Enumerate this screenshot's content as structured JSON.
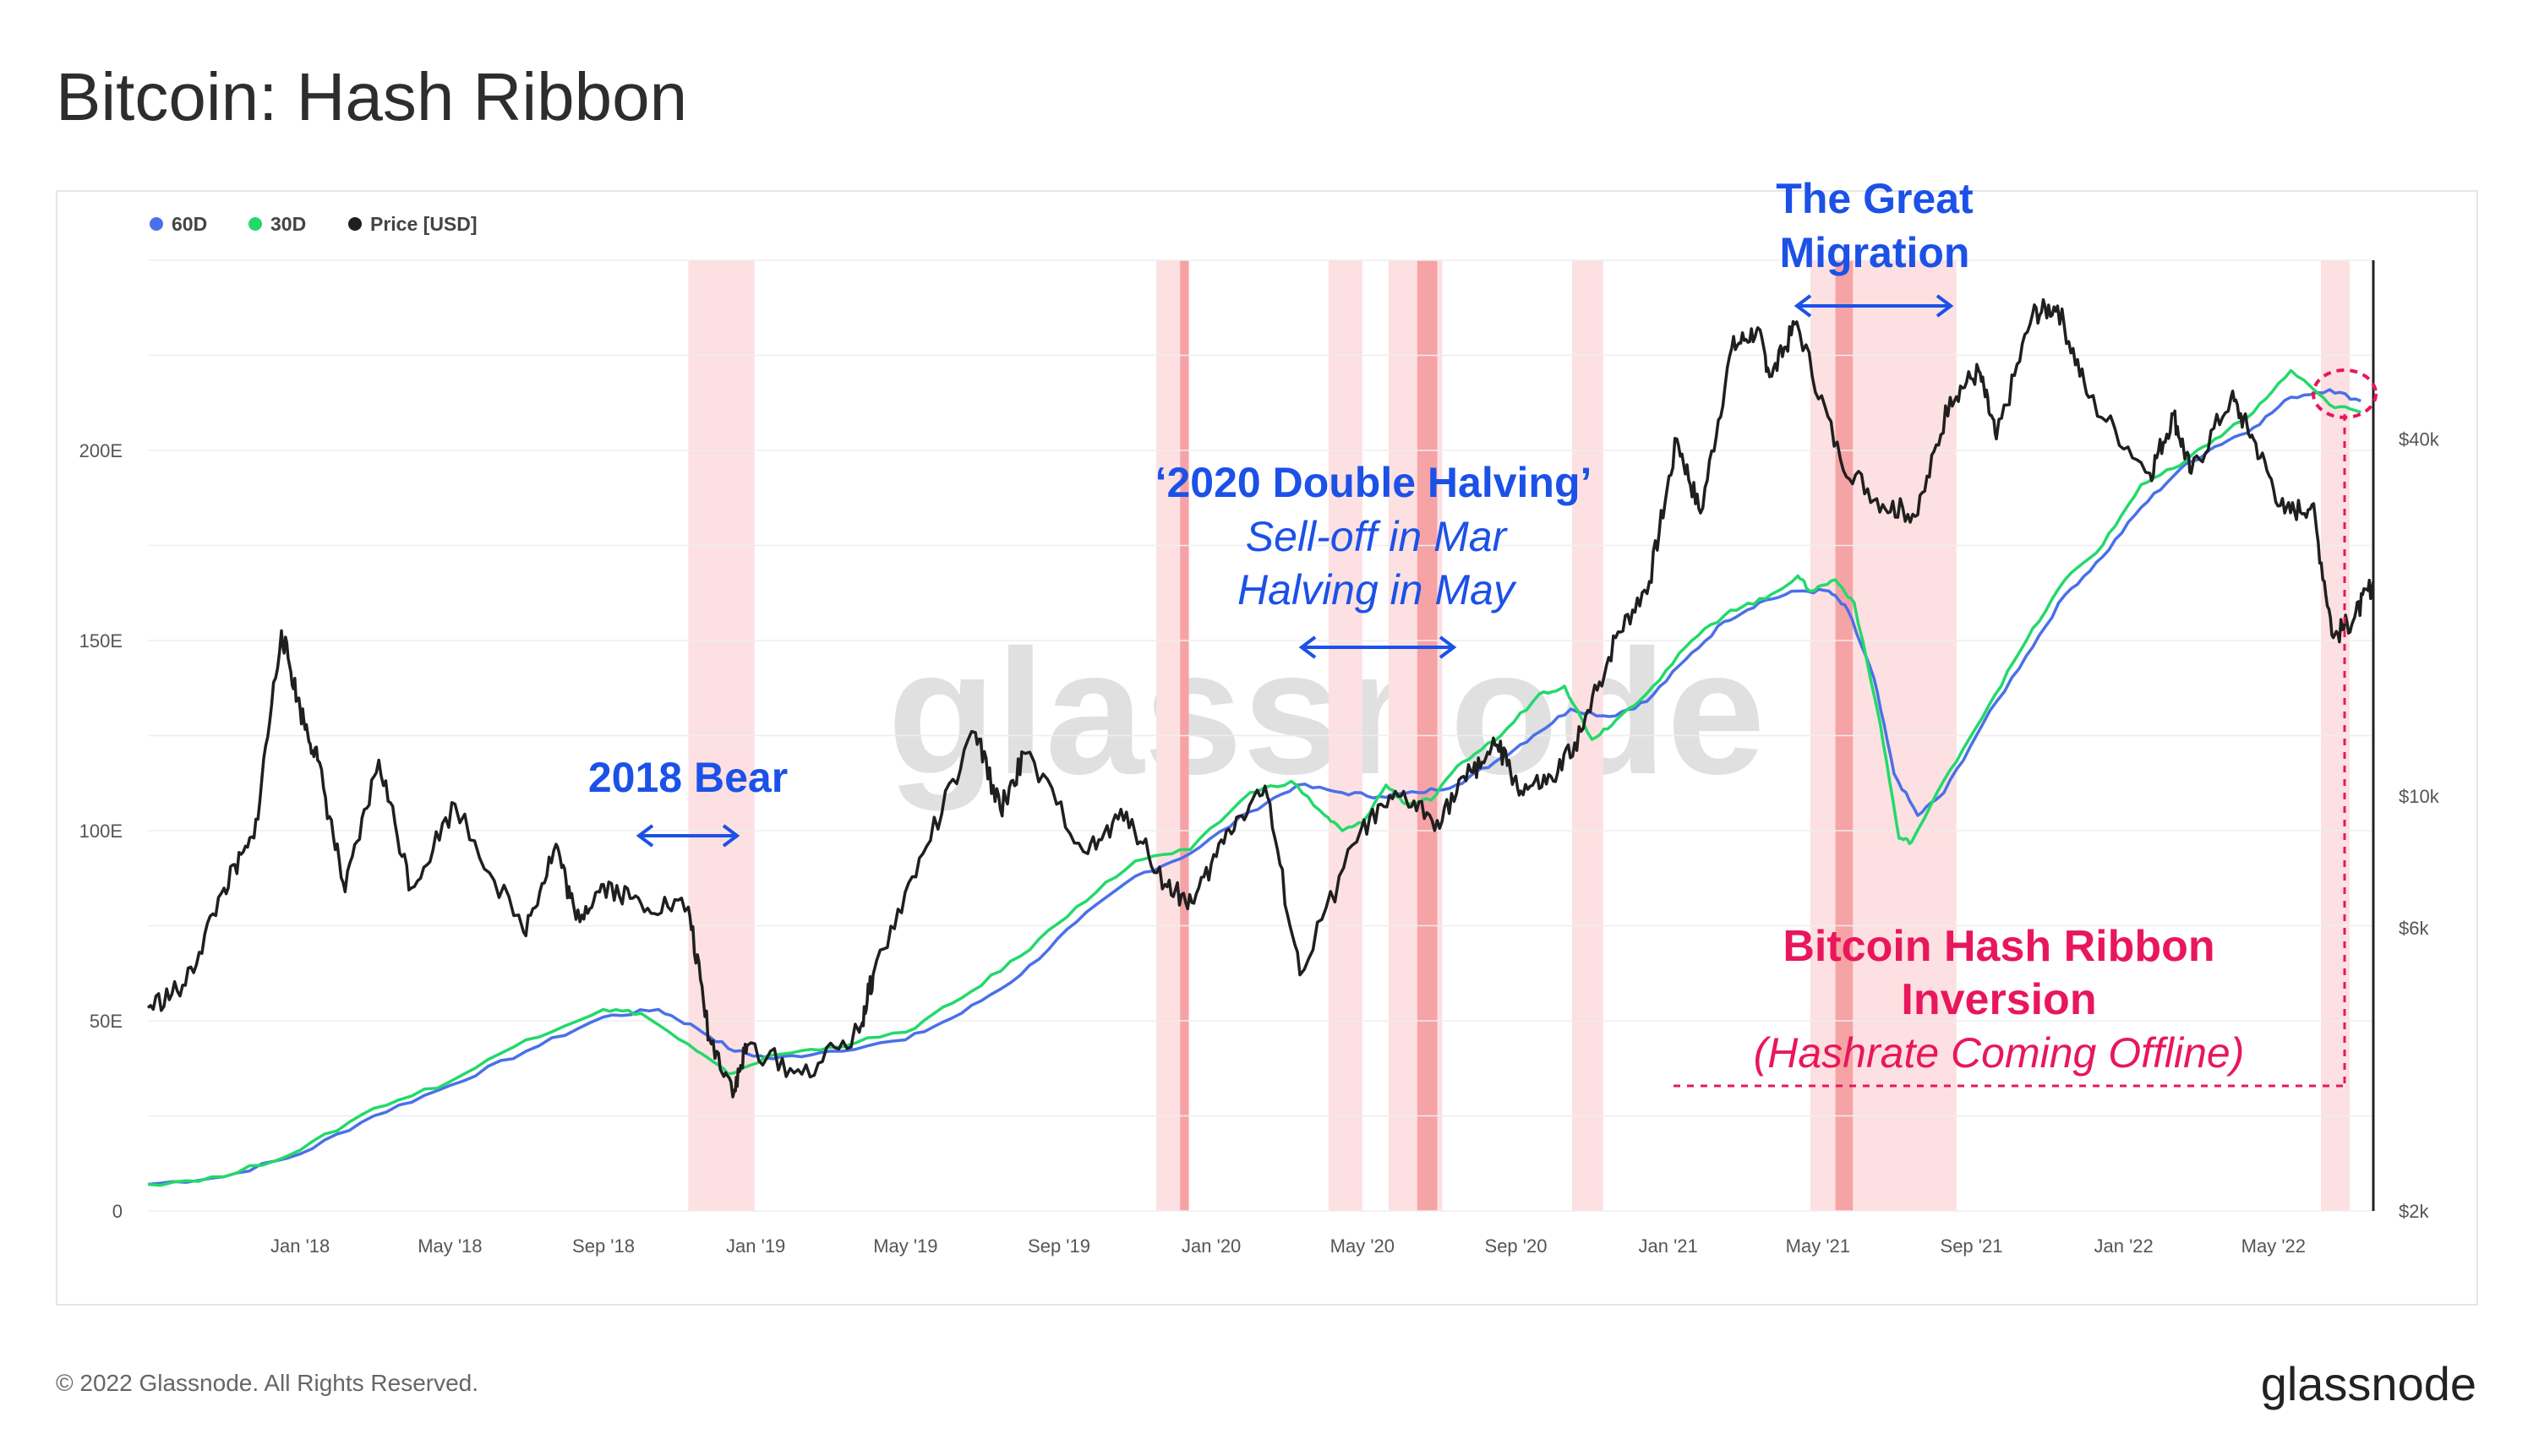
{
  "chart_data": {
    "type": "line",
    "title": "Bitcoin: Hash Ribbon",
    "x_axis": {
      "start": "2017-09-01",
      "end": "2022-07-20",
      "tick_labels": [
        "Jan '18",
        "May '18",
        "Sep '18",
        "Jan '19",
        "May '19",
        "Sep '19",
        "Jan '20",
        "May '20",
        "Sep '20",
        "Jan '21",
        "May '21",
        "Sep '21",
        "Jan '22",
        "May '22"
      ],
      "tick_dates": [
        "2018-01-01",
        "2018-05-01",
        "2018-09-01",
        "2019-01-01",
        "2019-05-01",
        "2019-09-01",
        "2020-01-01",
        "2020-05-01",
        "2020-09-01",
        "2021-01-01",
        "2021-05-01",
        "2021-09-01",
        "2022-01-01",
        "2022-05-01"
      ]
    },
    "y_axis_left": {
      "unit": "hashrate",
      "ylim": [
        0,
        250
      ],
      "ticks": [
        0,
        50,
        100,
        150,
        200
      ],
      "tick_labels": [
        "0",
        "50E",
        "100E",
        "150E",
        "200E"
      ]
    },
    "y_axis_right": {
      "unit": "Price [USD]",
      "scale": "log",
      "ylim": [
        2000,
        80000
      ],
      "ticks": [
        2000,
        6000,
        10000,
        40000
      ],
      "tick_labels": [
        "$2k",
        "$6k",
        "$10k",
        "$40k"
      ]
    },
    "legend": [
      {
        "name": "60D",
        "color": "#4a70e8"
      },
      {
        "name": "30D",
        "color": "#23d96a"
      },
      {
        "name": "Price [USD]",
        "color": "#1f1f1f"
      }
    ],
    "capitulation_bands": [
      {
        "start": "2018-11-08",
        "end": "2018-12-31",
        "shade": "light"
      },
      {
        "start": "2019-11-18",
        "end": "2019-12-14",
        "shade": "light"
      },
      {
        "start": "2019-12-07",
        "end": "2019-12-14",
        "shade": "dark"
      },
      {
        "start": "2020-04-04",
        "end": "2020-05-01",
        "shade": "light"
      },
      {
        "start": "2020-05-22",
        "end": "2020-07-04",
        "shade": "light"
      },
      {
        "start": "2020-06-14",
        "end": "2020-06-30",
        "shade": "dark"
      },
      {
        "start": "2020-10-16",
        "end": "2020-11-10",
        "shade": "light"
      },
      {
        "start": "2021-04-25",
        "end": "2021-08-20",
        "shade": "light"
      },
      {
        "start": "2021-05-15",
        "end": "2021-05-29",
        "shade": "dark"
      },
      {
        "start": "2022-06-08",
        "end": "2022-07-01",
        "shade": "light"
      }
    ],
    "series": [
      {
        "name": "60D",
        "axis": "left",
        "points": [
          [
            "2017-09-01",
            7
          ],
          [
            "2017-11-01",
            9
          ],
          [
            "2018-01-01",
            15
          ],
          [
            "2018-03-01",
            25
          ],
          [
            "2018-05-01",
            33
          ],
          [
            "2018-07-01",
            42
          ],
          [
            "2018-09-01",
            51
          ],
          [
            "2018-10-15",
            53
          ],
          [
            "2018-11-15",
            48
          ],
          [
            "2018-12-15",
            42
          ],
          [
            "2019-01-15",
            40
          ],
          [
            "2019-03-01",
            42
          ],
          [
            "2019-05-01",
            45
          ],
          [
            "2019-06-15",
            52
          ],
          [
            "2019-08-01",
            62
          ],
          [
            "2019-09-15",
            76
          ],
          [
            "2019-11-01",
            88
          ],
          [
            "2019-12-15",
            94
          ],
          [
            "2020-02-01",
            105
          ],
          [
            "2020-03-10",
            112
          ],
          [
            "2020-04-15",
            110
          ],
          [
            "2020-05-15",
            109
          ],
          [
            "2020-06-15",
            110
          ],
          [
            "2020-07-15",
            112
          ],
          [
            "2020-08-15",
            118
          ],
          [
            "2020-09-15",
            125
          ],
          [
            "2020-10-15",
            132
          ],
          [
            "2020-11-15",
            130
          ],
          [
            "2020-12-15",
            134
          ],
          [
            "2021-01-15",
            145
          ],
          [
            "2021-02-15",
            155
          ],
          [
            "2021-03-15",
            160
          ],
          [
            "2021-04-15",
            163
          ],
          [
            "2021-05-10",
            163
          ],
          [
            "2021-05-25",
            158
          ],
          [
            "2021-06-15",
            140
          ],
          [
            "2021-07-01",
            115
          ],
          [
            "2021-07-20",
            104
          ],
          [
            "2021-08-10",
            110
          ],
          [
            "2021-09-10",
            128
          ],
          [
            "2021-10-15",
            146
          ],
          [
            "2021-11-15",
            162
          ],
          [
            "2021-12-15",
            172
          ],
          [
            "2022-01-15",
            185
          ],
          [
            "2022-02-15",
            195
          ],
          [
            "2022-03-15",
            201
          ],
          [
            "2022-04-15",
            206
          ],
          [
            "2022-05-15",
            214
          ],
          [
            "2022-06-15",
            216
          ],
          [
            "2022-07-10",
            213
          ]
        ]
      },
      {
        "name": "30D",
        "axis": "left",
        "points": [
          [
            "2017-09-01",
            7
          ],
          [
            "2017-11-01",
            9
          ],
          [
            "2018-01-01",
            16
          ],
          [
            "2018-03-01",
            27
          ],
          [
            "2018-05-01",
            34
          ],
          [
            "2018-07-01",
            45
          ],
          [
            "2018-09-01",
            53
          ],
          [
            "2018-10-01",
            52
          ],
          [
            "2018-11-15",
            42
          ],
          [
            "2018-12-10",
            36
          ],
          [
            "2019-01-15",
            41
          ],
          [
            "2019-03-01",
            43
          ],
          [
            "2019-05-01",
            47
          ],
          [
            "2019-06-15",
            56
          ],
          [
            "2019-08-01",
            67
          ],
          [
            "2019-09-15",
            80
          ],
          [
            "2019-11-01",
            92
          ],
          [
            "2019-12-15",
            95
          ],
          [
            "2020-02-01",
            110
          ],
          [
            "2020-03-05",
            113
          ],
          [
            "2020-04-01",
            104
          ],
          [
            "2020-04-15",
            100
          ],
          [
            "2020-05-01",
            102
          ],
          [
            "2020-05-20",
            112
          ],
          [
            "2020-06-05",
            107
          ],
          [
            "2020-06-25",
            108
          ],
          [
            "2020-07-20",
            118
          ],
          [
            "2020-08-20",
            125
          ],
          [
            "2020-09-20",
            136
          ],
          [
            "2020-10-10",
            138
          ],
          [
            "2020-11-01",
            124
          ],
          [
            "2020-11-20",
            129
          ],
          [
            "2020-12-20",
            138
          ],
          [
            "2021-01-20",
            150
          ],
          [
            "2021-02-20",
            158
          ],
          [
            "2021-03-20",
            161
          ],
          [
            "2021-04-15",
            167
          ],
          [
            "2021-04-25",
            163
          ],
          [
            "2021-05-15",
            166
          ],
          [
            "2021-05-30",
            160
          ],
          [
            "2021-06-20",
            128
          ],
          [
            "2021-07-05",
            98
          ],
          [
            "2021-07-15",
            97
          ],
          [
            "2021-08-15",
            116
          ],
          [
            "2021-09-15",
            133
          ],
          [
            "2021-10-15",
            150
          ],
          [
            "2021-11-15",
            166
          ],
          [
            "2021-12-15",
            175
          ],
          [
            "2022-01-15",
            191
          ],
          [
            "2022-02-15",
            196
          ],
          [
            "2022-03-15",
            203
          ],
          [
            "2022-04-15",
            210
          ],
          [
            "2022-05-15",
            221
          ],
          [
            "2022-06-15",
            212
          ],
          [
            "2022-07-10",
            210
          ]
        ]
      },
      {
        "name": "Price [USD]",
        "axis": "right",
        "points": [
          [
            "2017-09-01",
            4400
          ],
          [
            "2017-10-01",
            4800
          ],
          [
            "2017-11-01",
            7000
          ],
          [
            "2017-11-25",
            8500
          ],
          [
            "2017-12-17",
            19000
          ],
          [
            "2018-01-01",
            14000
          ],
          [
            "2018-01-15",
            11500
          ],
          [
            "2018-02-06",
            6900
          ],
          [
            "2018-03-05",
            11500
          ],
          [
            "2018-03-31",
            7000
          ],
          [
            "2018-05-05",
            9700
          ],
          [
            "2018-06-29",
            5900
          ],
          [
            "2018-07-25",
            8300
          ],
          [
            "2018-08-10",
            6200
          ],
          [
            "2018-09-01",
            7100
          ],
          [
            "2018-10-01",
            6600
          ],
          [
            "2018-11-08",
            6500
          ],
          [
            "2018-11-25",
            3900
          ],
          [
            "2018-12-15",
            3200
          ],
          [
            "2018-12-25",
            3800
          ],
          [
            "2019-02-07",
            3400
          ],
          [
            "2019-03-25",
            4000
          ],
          [
            "2019-04-05",
            5000
          ],
          [
            "2019-05-15",
            8000
          ],
          [
            "2019-06-26",
            12800
          ],
          [
            "2019-07-16",
            9500
          ],
          [
            "2019-08-05",
            11800
          ],
          [
            "2019-09-24",
            8000
          ],
          [
            "2019-10-25",
            9400
          ],
          [
            "2019-11-25",
            7100
          ],
          [
            "2019-12-18",
            6600
          ],
          [
            "2020-01-15",
            8800
          ],
          [
            "2020-02-13",
            10400
          ],
          [
            "2020-03-12",
            5000
          ],
          [
            "2020-04-30",
            8800
          ],
          [
            "2020-06-01",
            10000
          ],
          [
            "2020-06-30",
            9100
          ],
          [
            "2020-07-27",
            11000
          ],
          [
            "2020-08-17",
            12200
          ],
          [
            "2020-09-05",
            10200
          ],
          [
            "2020-10-01",
            10600
          ],
          [
            "2020-10-25",
            13000
          ],
          [
            "2020-11-20",
            18500
          ],
          [
            "2020-12-17",
            23000
          ],
          [
            "2021-01-08",
            40000
          ],
          [
            "2021-01-27",
            30000
          ],
          [
            "2021-02-21",
            57000
          ],
          [
            "2021-03-13",
            61000
          ],
          [
            "2021-03-25",
            51000
          ],
          [
            "2021-04-14",
            63000
          ],
          [
            "2021-05-19",
            37000
          ],
          [
            "2021-06-22",
            31000
          ],
          [
            "2021-07-20",
            29800
          ],
          [
            "2021-08-15",
            47000
          ],
          [
            "2021-09-07",
            52000
          ],
          [
            "2021-09-21",
            40000
          ],
          [
            "2021-10-20",
            65000
          ],
          [
            "2021-11-09",
            67000
          ],
          [
            "2021-12-04",
            47000
          ],
          [
            "2022-01-22",
            35000
          ],
          [
            "2022-02-10",
            44000
          ],
          [
            "2022-02-24",
            35000
          ],
          [
            "2022-03-28",
            47000
          ],
          [
            "2022-04-15",
            40000
          ],
          [
            "2022-05-10",
            30000
          ],
          [
            "2022-06-01",
            31000
          ],
          [
            "2022-06-18",
            18500
          ],
          [
            "2022-07-05",
            20000
          ],
          [
            "2022-07-20",
            23000
          ]
        ]
      }
    ],
    "annotations": {
      "bear_2018": "2018 Bear",
      "halving_title": "‘2020 Double Halving’",
      "halving_line1": "Sell-off in Mar",
      "halving_line2": "Halving in May",
      "migration_line1": "The Great",
      "migration_line2": "Migration",
      "inversion_line1": "Bitcoin Hash Ribbon",
      "inversion_line2": "Inversion",
      "inversion_line3": "(Hashrate Coming Offline)"
    }
  },
  "watermark": "glassnode",
  "footer": {
    "copyright": "© 2022 Glassnode. All Rights Reserved.",
    "brand": "glassnode"
  }
}
